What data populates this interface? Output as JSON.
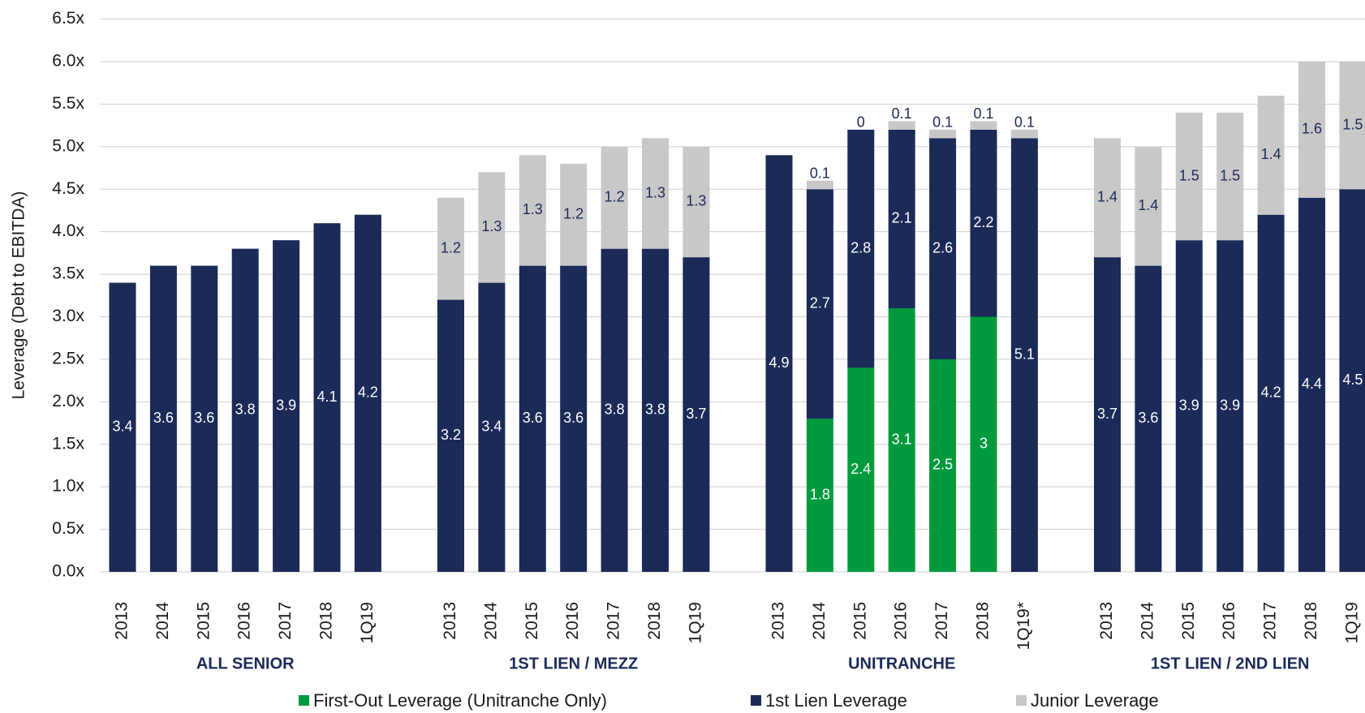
{
  "chart_data": {
    "type": "stacked_bar",
    "y_label": "Leverage (Debt to EBITDA)",
    "groups": [
      "ALL SENIOR",
      "1ST LIEN / MEZZ",
      "UNITRANCHE",
      "1ST LIEN / 2ND LIEN"
    ],
    "categories": [
      "2013",
      "2014",
      "2015",
      "2016",
      "2017",
      "2018",
      "1Q19",
      "2013",
      "2014",
      "2015",
      "2016",
      "2017",
      "2018",
      "1Q19",
      "2013",
      "2014",
      "2015",
      "2016",
      "2017",
      "2018",
      "1Q19*",
      "2013",
      "2014",
      "2015",
      "2016",
      "2017",
      "2018",
      "1Q19"
    ],
    "series": [
      {
        "name": "First-Out Leverage (Unitranche Only)",
        "color": "#009a3e",
        "values": [
          null,
          null,
          null,
          null,
          null,
          null,
          null,
          null,
          null,
          null,
          null,
          null,
          null,
          null,
          null,
          1.8,
          2.4,
          3.1,
          2.5,
          3.0,
          null,
          null,
          null,
          null,
          null,
          null,
          null,
          null
        ]
      },
      {
        "name": "1st Lien Leverage",
        "color": "#1b2a57",
        "values": [
          3.4,
          3.6,
          3.6,
          3.8,
          3.9,
          4.1,
          4.2,
          3.2,
          3.4,
          3.6,
          3.6,
          3.8,
          3.8,
          3.7,
          4.9,
          2.7,
          2.8,
          2.1,
          2.6,
          2.2,
          5.1,
          3.7,
          3.6,
          3.9,
          3.9,
          4.2,
          4.4,
          4.5
        ]
      },
      {
        "name": "Junior Leverage",
        "color": "#c8c8c8",
        "values": [
          null,
          null,
          null,
          null,
          null,
          null,
          null,
          1.2,
          1.3,
          1.3,
          1.2,
          1.2,
          1.3,
          1.3,
          null,
          0.1,
          0.0,
          0.1,
          0.1,
          0.1,
          0.1,
          1.4,
          1.4,
          1.5,
          1.5,
          1.4,
          1.6,
          1.5
        ]
      }
    ],
    "ylim": [
      0,
      6.5
    ],
    "yticks": [
      {
        "value": 0,
        "label": "0.0x"
      },
      {
        "value": 0.5,
        "label": "0.5x"
      },
      {
        "value": 1,
        "label": "1.0x"
      },
      {
        "value": 1.5,
        "label": "1.5x"
      },
      {
        "value": 2,
        "label": "2.0x"
      },
      {
        "value": 2.5,
        "label": "2.5x"
      },
      {
        "value": 3,
        "label": "3.0x"
      },
      {
        "value": 3.5,
        "label": "3.5x"
      },
      {
        "value": 4,
        "label": "4.0x"
      },
      {
        "value": 4.5,
        "label": "4.5x"
      },
      {
        "value": 5,
        "label": "5.0x"
      },
      {
        "value": 5.5,
        "label": "5.5x"
      },
      {
        "value": 6,
        "label": "6.0x"
      },
      {
        "value": 6.5,
        "label": "6.5x"
      }
    ],
    "grid": true
  }
}
